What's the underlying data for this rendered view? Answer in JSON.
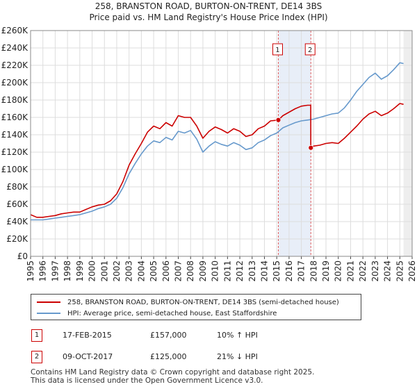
{
  "title_line1": "258, BRANSTON ROAD, BURTON-ON-TRENT, DE14 3BS",
  "title_line2": "Price paid vs. HM Land Registry's House Price Index (HPI)",
  "legend": {
    "property_label": "258, BRANSTON ROAD, BURTON-ON-TRENT, DE14 3BS (semi-detached house)",
    "hpi_label": "HPI: Average price, semi-detached house, East Staffordshire"
  },
  "sales": [
    {
      "marker": "1",
      "date": "17-FEB-2015",
      "price": "£157,000",
      "hpi_delta": "10% ↑ HPI"
    },
    {
      "marker": "2",
      "date": "09-OCT-2017",
      "price": "£125,000",
      "hpi_delta": "21% ↓ HPI"
    }
  ],
  "footer_line1": "Contains HM Land Registry data © Crown copyright and database right 2025.",
  "footer_line2": "This data is licensed under the Open Government Licence v3.0.",
  "colors": {
    "property": "#cc0000",
    "hpi": "#6699cc",
    "highlight": "#e8eef8",
    "grid": "#dddddd",
    "sale_line": "#e06060"
  },
  "chart_data": {
    "type": "line",
    "x_range": [
      1995,
      2026
    ],
    "ylim": [
      0,
      260000
    ],
    "x_ticks": [
      "1995",
      "1996",
      "1997",
      "1998",
      "1999",
      "2000",
      "2001",
      "2002",
      "2003",
      "2004",
      "2005",
      "2006",
      "2007",
      "2008",
      "2009",
      "2010",
      "2011",
      "2012",
      "2013",
      "2014",
      "2015",
      "2016",
      "2017",
      "2018",
      "2019",
      "2020",
      "2021",
      "2022",
      "2023",
      "2024",
      "2025",
      "2026"
    ],
    "y_ticks": [
      {
        "value": 0,
        "label": "£0"
      },
      {
        "value": 20000,
        "label": "£20K"
      },
      {
        "value": 40000,
        "label": "£40K"
      },
      {
        "value": 60000,
        "label": "£60K"
      },
      {
        "value": 80000,
        "label": "£80K"
      },
      {
        "value": 100000,
        "label": "£100K"
      },
      {
        "value": 120000,
        "label": "£120K"
      },
      {
        "value": 140000,
        "label": "£140K"
      },
      {
        "value": 160000,
        "label": "£160K"
      },
      {
        "value": 180000,
        "label": "£180K"
      },
      {
        "value": 200000,
        "label": "£200K"
      },
      {
        "value": 220000,
        "label": "£220K"
      },
      {
        "value": 240000,
        "label": "£240K"
      },
      {
        "value": 260000,
        "label": "£260K"
      }
    ],
    "highlight_range": [
      2015.13,
      2017.77
    ],
    "future_range": [
      2025.3,
      2026
    ],
    "series": [
      {
        "name": "258, BRANSTON ROAD, BURTON-ON-TRENT, DE14 3BS (semi-detached house)",
        "x": [
          1995,
          1995.5,
          1996,
          1996.5,
          1997,
          1997.5,
          1998,
          1998.5,
          1999,
          1999.5,
          2000,
          2000.5,
          2001,
          2001.5,
          2002,
          2002.5,
          2003,
          2003.5,
          2004,
          2004.5,
          2005,
          2005.5,
          2006,
          2006.5,
          2007,
          2007.5,
          2008,
          2008.5,
          2009,
          2009.5,
          2010,
          2010.5,
          2011,
          2011.5,
          2012,
          2012.5,
          2013,
          2013.5,
          2014,
          2014.5,
          2015.13,
          2015.5,
          2016,
          2016.5,
          2017,
          2017.5,
          2017.76,
          2017.77,
          2018,
          2018.5,
          2019,
          2019.5,
          2020,
          2020.5,
          2021,
          2021.5,
          2022,
          2022.5,
          2023,
          2023.5,
          2024,
          2024.5,
          2025,
          2025.3
        ],
        "values": [
          48000,
          45000,
          45000,
          46000,
          47000,
          49000,
          50000,
          51000,
          51000,
          54000,
          57000,
          59000,
          60000,
          64000,
          72000,
          86000,
          105000,
          118000,
          130000,
          143000,
          150000,
          147000,
          154000,
          150000,
          162000,
          160000,
          160000,
          150000,
          136000,
          144000,
          149000,
          146000,
          142000,
          147000,
          144000,
          138000,
          140000,
          147000,
          150000,
          156000,
          157000,
          162000,
          166000,
          170000,
          173000,
          174000,
          174000,
          125000,
          127000,
          128000,
          130000,
          131000,
          130000,
          136000,
          143000,
          150000,
          158000,
          164000,
          167000,
          162000,
          165000,
          170000,
          176000,
          175000
        ]
      },
      {
        "name": "HPI: Average price, semi-detached house, East Staffordshire",
        "x": [
          1995,
          1995.5,
          1996,
          1996.5,
          1997,
          1997.5,
          1998,
          1998.5,
          1999,
          1999.5,
          2000,
          2000.5,
          2001,
          2001.5,
          2002,
          2002.5,
          2003,
          2003.5,
          2004,
          2004.5,
          2005,
          2005.5,
          2006,
          2006.5,
          2007,
          2007.5,
          2008,
          2008.5,
          2009,
          2009.5,
          2010,
          2010.5,
          2011,
          2011.5,
          2012,
          2012.5,
          2013,
          2013.5,
          2014,
          2014.5,
          2015,
          2015.5,
          2016,
          2016.5,
          2017,
          2017.5,
          2018,
          2018.5,
          2019,
          2019.5,
          2020,
          2020.5,
          2021,
          2021.5,
          2022,
          2022.5,
          2023,
          2023.5,
          2024,
          2024.5,
          2025,
          2025.3
        ],
        "values": [
          42000,
          42000,
          42000,
          43000,
          44000,
          45000,
          46000,
          47000,
          48000,
          50000,
          52000,
          55000,
          57000,
          60000,
          67000,
          79000,
          95000,
          107000,
          118000,
          127000,
          133000,
          131000,
          137000,
          134000,
          144000,
          142000,
          145000,
          135000,
          120000,
          127000,
          132000,
          129000,
          127000,
          131000,
          128000,
          123000,
          125000,
          131000,
          134000,
          139000,
          142000,
          148000,
          151000,
          154000,
          156000,
          157000,
          158000,
          160000,
          162000,
          164000,
          165000,
          171000,
          180000,
          190000,
          198000,
          206000,
          211000,
          204000,
          208000,
          215000,
          223000,
          222000
        ]
      }
    ],
    "sale_points": [
      {
        "label": "1",
        "x": 2015.13,
        "value": 157000
      },
      {
        "label": "2",
        "x": 2017.77,
        "value": 125000
      }
    ]
  }
}
